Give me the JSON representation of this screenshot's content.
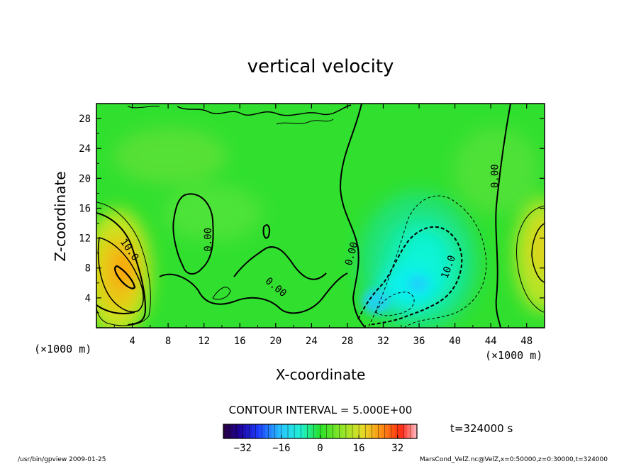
{
  "chart_data": {
    "type": "heatmap",
    "title": "vertical velocity",
    "xlabel": "X-coordinate",
    "ylabel": "Z-coordinate",
    "x_unit": "(×1000 m)",
    "x_unit_left": "(×1000 m)",
    "xlim": [
      0,
      50
    ],
    "ylim": [
      0,
      30
    ],
    "x_ticks": [
      4,
      8,
      12,
      16,
      20,
      24,
      28,
      32,
      36,
      40,
      44,
      48
    ],
    "y_ticks": [
      4,
      8,
      12,
      16,
      20,
      24,
      28
    ],
    "contour_interval_text": "CONTOUR INTERVAL = 5.000E+00",
    "time_text": "t=324000 s",
    "colorbar": {
      "range": [
        -40,
        40
      ],
      "ticks": [
        -32,
        -16,
        0,
        16,
        32
      ]
    },
    "contour_labels": [
      {
        "text": "10.0",
        "x": 3.4,
        "y": 10.2
      },
      {
        "text": "0.00",
        "x": 12.8,
        "y": 11.8
      },
      {
        "text": "0.00",
        "x": 19.8,
        "y": 5.1
      },
      {
        "text": "0.00",
        "x": 28.8,
        "y": 9.8
      },
      {
        "text": "10.0",
        "x": 39.6,
        "y": 8.0
      },
      {
        "text": "0.00",
        "x": 44.8,
        "y": 20.3
      }
    ],
    "features": [
      {
        "kind": "updraft",
        "x": 3.0,
        "y": 7.2,
        "peak": 18
      },
      {
        "kind": "downdraft",
        "x": 35.5,
        "y": 6.0,
        "peak": -14
      }
    ],
    "colors": {
      "background_field": "#31e02f",
      "positive_max": "#ff2a00",
      "negative_max": "#00ffff"
    }
  },
  "footer": {
    "left": "/usr/bin/gpview  2009-01-25",
    "right": "MarsCond_VelZ.nc@VelZ,x=0:50000,z=0:30000,t=324000"
  }
}
